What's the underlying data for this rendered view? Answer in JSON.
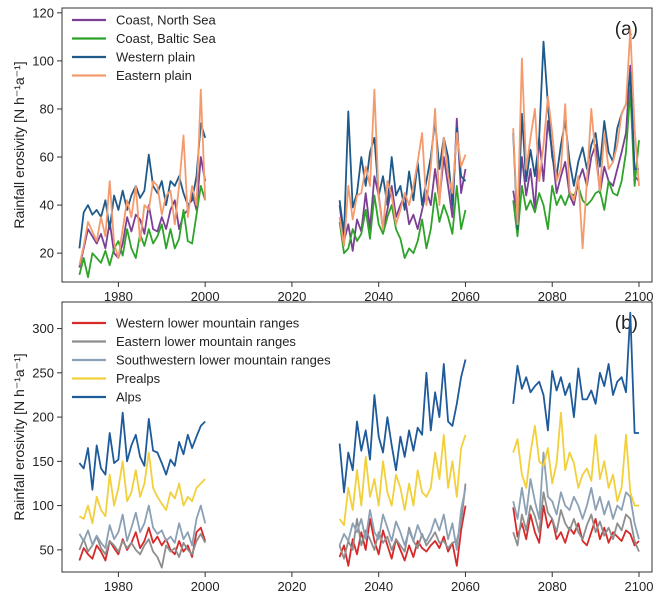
{
  "figure": {
    "shared_xticks": [
      "1980",
      "2000",
      "2020",
      "2040",
      "2060",
      "2080",
      "2100"
    ]
  },
  "chart_data": [
    {
      "type": "line",
      "panel_label": "(a)",
      "ylabel": "Rainfall erosivity [N h⁻¹a⁻¹]",
      "xlim": [
        1967,
        2103
      ],
      "ylim": [
        8,
        122
      ],
      "x_ticks": [
        1980,
        2000,
        2020,
        2040,
        2060,
        2080,
        2100
      ],
      "y_ticks": [
        20,
        40,
        60,
        80,
        100,
        120
      ],
      "y_tick_labels": [
        "20",
        "40",
        "60",
        "80",
        "100",
        "120"
      ],
      "legend": "top-left",
      "grid": false,
      "segments": [
        [
          1971,
          2000
        ],
        [
          2031,
          2060
        ],
        [
          2071,
          2100
        ]
      ],
      "series": [
        {
          "name": "Coast, North Sea",
          "color": "#7b3f94",
          "values": [
            14,
            22,
            30,
            27,
            24,
            28,
            22,
            33,
            20,
            18,
            24,
            35,
            29,
            36,
            34,
            28,
            40,
            30,
            29,
            35,
            30,
            38,
            42,
            30,
            36,
            38,
            45,
            38,
            60,
            50,
            40,
            25,
            32,
            21,
            34,
            29,
            45,
            30,
            52,
            44,
            30,
            38,
            48,
            35,
            40,
            44,
            32,
            36,
            30,
            38,
            46,
            40,
            55,
            42,
            60,
            48,
            35,
            76,
            45,
            55,
            46,
            35,
            60,
            44,
            55,
            38,
            68,
            50,
            75,
            62,
            45,
            52,
            58,
            44,
            40,
            50,
            55,
            48,
            60,
            65,
            45,
            56,
            50,
            48,
            55,
            62,
            70,
            98,
            52,
            50
          ]
        },
        {
          "name": "Coast, Baltic Sea",
          "color": "#2ea32a",
          "values": [
            11,
            18,
            10,
            20,
            18,
            16,
            21,
            15,
            22,
            25,
            19,
            30,
            22,
            18,
            28,
            23,
            30,
            24,
            27,
            32,
            22,
            30,
            22,
            26,
            38,
            25,
            24,
            36,
            48,
            42,
            33,
            20,
            22,
            30,
            25,
            28,
            38,
            26,
            44,
            32,
            28,
            35,
            40,
            30,
            26,
            18,
            22,
            20,
            25,
            34,
            22,
            30,
            45,
            33,
            40,
            35,
            28,
            48,
            30,
            38,
            42,
            27,
            48,
            38,
            42,
            37,
            45,
            40,
            30,
            48,
            40,
            44,
            40,
            45,
            44,
            48,
            42,
            40,
            42,
            45,
            46,
            38,
            50,
            45,
            44,
            50,
            62,
            88,
            48,
            67
          ]
        },
        {
          "name": "Western plain",
          "color": "#1f5a8a",
          "values": [
            22,
            37,
            40,
            36,
            38,
            35,
            42,
            30,
            44,
            38,
            46,
            38,
            44,
            48,
            43,
            46,
            61,
            48,
            45,
            50,
            40,
            50,
            48,
            52,
            45,
            40,
            42,
            52,
            74,
            68,
            42,
            28,
            79,
            39,
            45,
            60,
            48,
            62,
            68,
            44,
            52,
            40,
            60,
            44,
            48,
            38,
            54,
            42,
            58,
            40,
            50,
            60,
            75,
            55,
            68,
            60,
            40,
            72,
            52,
            50,
            70,
            30,
            78,
            50,
            63,
            52,
            68,
            108,
            82,
            60,
            52,
            65,
            75,
            58,
            48,
            58,
            64,
            55,
            65,
            70,
            56,
            75,
            62,
            58,
            72,
            78,
            82,
            95,
            55,
            55
          ]
        },
        {
          "name": "Eastern plain",
          "color": "#f49b6e",
          "values": [
            15,
            23,
            33,
            29,
            25,
            35,
            27,
            50,
            24,
            18,
            30,
            42,
            35,
            48,
            25,
            40,
            38,
            50,
            48,
            36,
            44,
            46,
            32,
            48,
            69,
            35,
            48,
            40,
            88,
            42,
            35,
            23,
            48,
            34,
            44,
            45,
            56,
            48,
            88,
            43,
            30,
            50,
            44,
            32,
            38,
            45,
            40,
            48,
            58,
            70,
            40,
            56,
            80,
            40,
            68,
            52,
            45,
            70,
            56,
            61,
            72,
            32,
            101,
            55,
            68,
            80,
            50,
            65,
            85,
            70,
            50,
            55,
            82,
            46,
            42,
            52,
            22,
            50,
            80,
            60,
            46,
            70,
            55,
            58,
            65,
            78,
            82,
            113,
            72,
            48
          ]
        }
      ]
    },
    {
      "type": "line",
      "panel_label": "(b)",
      "ylabel": "Rainfall erosivity [N h⁻¹a⁻¹]",
      "xlim": [
        1967,
        2103
      ],
      "ylim": [
        25,
        330
      ],
      "x_ticks": [
        1980,
        2000,
        2020,
        2040,
        2060,
        2080,
        2100
      ],
      "y_ticks": [
        50,
        100,
        150,
        200,
        250,
        300
      ],
      "y_tick_labels": [
        "50",
        "100",
        "150",
        "200",
        "250",
        "300"
      ],
      "legend": "top-left",
      "grid": false,
      "segments": [
        [
          1971,
          2000
        ],
        [
          2031,
          2060
        ],
        [
          2071,
          2100
        ]
      ],
      "series": [
        {
          "name": "Western lower mountain ranges",
          "color": "#d62a2a",
          "values": [
            38,
            52,
            45,
            40,
            55,
            48,
            38,
            60,
            52,
            45,
            62,
            50,
            58,
            70,
            52,
            60,
            75,
            58,
            65,
            55,
            62,
            50,
            45,
            60,
            48,
            55,
            42,
            70,
            75,
            60,
            42,
            55,
            32,
            62,
            45,
            70,
            50,
            85,
            60,
            45,
            72,
            55,
            40,
            62,
            50,
            38,
            55,
            42,
            60,
            52,
            48,
            55,
            60,
            52,
            65,
            48,
            58,
            32,
            72,
            100,
            98,
            65,
            80,
            62,
            90,
            70,
            58,
            100,
            75,
            85,
            62,
            70,
            58,
            75,
            68,
            80,
            60,
            55,
            70,
            85,
            62,
            75,
            58,
            70,
            65,
            60,
            72,
            68,
            55,
            60
          ]
        },
        {
          "name": "Eastern lower mountain ranges",
          "color": "#8e8e8e",
          "values": [
            50,
            62,
            48,
            55,
            65,
            52,
            45,
            60,
            55,
            48,
            60,
            52,
            58,
            50,
            45,
            55,
            62,
            48,
            42,
            30,
            55,
            48,
            52,
            42,
            58,
            50,
            45,
            60,
            68,
            58,
            55,
            40,
            60,
            50,
            85,
            55,
            72,
            62,
            50,
            70,
            58,
            65,
            50,
            62,
            55,
            48,
            75,
            60,
            52,
            68,
            55,
            62,
            70,
            58,
            60,
            52,
            58,
            60,
            80,
            125,
            70,
            55,
            90,
            72,
            100,
            88,
            70,
            115,
            92,
            85,
            70,
            95,
            80,
            72,
            85,
            70,
            62,
            78,
            90,
            70,
            82,
            66,
            75,
            62,
            80,
            72,
            90,
            85,
            60,
            48
          ]
        },
        {
          "name": "Southwestern lower mountain ranges",
          "color": "#8ba0b5",
          "values": [
            68,
            60,
            72,
            56,
            66,
            58,
            52,
            78,
            62,
            70,
            90,
            60,
            75,
            92,
            70,
            80,
            100,
            75,
            68,
            72,
            60,
            65,
            58,
            80,
            62,
            70,
            55,
            85,
            100,
            80,
            55,
            68,
            60,
            80,
            70,
            85,
            62,
            95,
            70,
            62,
            90,
            75,
            60,
            82,
            70,
            55,
            72,
            60,
            78,
            65,
            60,
            70,
            85,
            72,
            90,
            62,
            80,
            50,
            95,
            120,
            105,
            85,
            120,
            90,
            130,
            105,
            85,
            160,
            110,
            105,
            90,
            115,
            100,
            95,
            110,
            100,
            85,
            100,
            120,
            95,
            110,
            90,
            105,
            85,
            100,
            95,
            115,
            110,
            80,
            62
          ]
        },
        {
          "name": "Prealps",
          "color": "#f2d03b",
          "values": [
            88,
            85,
            100,
            80,
            110,
            95,
            88,
            135,
            100,
            120,
            150,
            105,
            115,
            140,
            110,
            125,
            160,
            120,
            110,
            102,
            95,
            115,
            108,
            125,
            100,
            110,
            105,
            120,
            125,
            130,
            85,
            78,
            120,
            95,
            140,
            100,
            155,
            110,
            130,
            100,
            150,
            115,
            100,
            135,
            120,
            95,
            125,
            100,
            140,
            115,
            110,
            120,
            160,
            130,
            180,
            120,
            150,
            110,
            165,
            180,
            160,
            175,
            135,
            120,
            160,
            190,
            150,
            145,
            165,
            125,
            148,
            205,
            140,
            160,
            148,
            120,
            135,
            142,
            128,
            180,
            130,
            150,
            120,
            135,
            105,
            120,
            180,
            115,
            100,
            100
          ]
        },
        {
          "name": "Alps",
          "color": "#1f5a9a",
          "values": [
            148,
            142,
            165,
            118,
            168,
            142,
            135,
            182,
            148,
            152,
            205,
            150,
            168,
            180,
            155,
            145,
            198,
            162,
            160,
            148,
            135,
            152,
            145,
            172,
            158,
            180,
            165,
            178,
            190,
            195,
            170,
            115,
            160,
            140,
            195,
            162,
            185,
            152,
            225,
            178,
            160,
            200,
            168,
            140,
            178,
            155,
            185,
            162,
            188,
            180,
            250,
            185,
            228,
            200,
            260,
            195,
            190,
            215,
            245,
            265,
            215,
            258,
            232,
            245,
            228,
            235,
            240,
            225,
            185,
            252,
            230,
            245,
            225,
            238,
            200,
            255,
            220,
            220,
            230,
            215,
            250,
            235,
            260,
            225,
            240,
            245,
            228,
            318,
            182,
            182
          ]
        }
      ]
    }
  ]
}
